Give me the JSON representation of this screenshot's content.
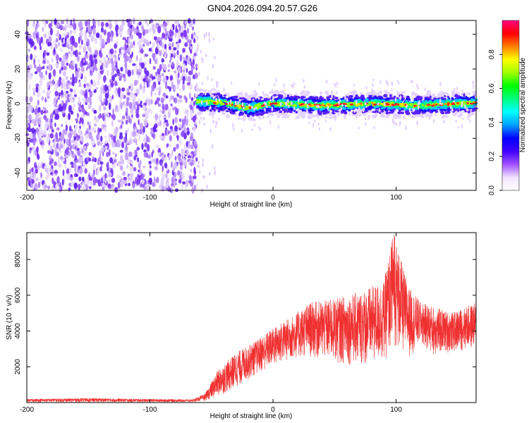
{
  "title": "GN04.2026.094.20.57.G26",
  "chart_data": [
    {
      "type": "heatmap",
      "xlabel": "Height of straight line (km)",
      "ylabel": "Frequency (Hz)",
      "xlim": [
        -200,
        165
      ],
      "ylim": [
        -50,
        48
      ],
      "xticks": [
        "-200",
        "-100",
        "0",
        "100"
      ],
      "xtick_values": [
        -200,
        -100,
        0,
        100
      ],
      "yticks": [
        "-40",
        "-20",
        "0",
        "20",
        "40"
      ],
      "ytick_values": [
        -40,
        -20,
        0,
        20,
        40
      ],
      "colorbar": {
        "label": "Normalized spectral amplitude",
        "range": [
          0,
          1
        ],
        "ticks": [
          "0.0",
          "0.2",
          "0.4",
          "0.6",
          "0.8"
        ],
        "tick_values": [
          0.0,
          0.2,
          0.4,
          0.6,
          0.8
        ],
        "colors": [
          "#ffffff",
          "#f0e0ff",
          "#a050ff",
          "#4000ff",
          "#0000ff",
          "#00a0ff",
          "#00ffff",
          "#00ff80",
          "#00ff00",
          "#a0ff00",
          "#ffff00",
          "#ff8000",
          "#ff0000",
          "#ff0080"
        ]
      },
      "noise_region_x": [
        -200,
        -62
      ],
      "signal_start_x": -62,
      "signal_center_freq": 0,
      "signal_track": [
        {
          "x": -62,
          "f": 1.5
        },
        {
          "x": -40,
          "f": 0.5
        },
        {
          "x": -20,
          "f": -2.5
        },
        {
          "x": 0,
          "f": 0
        },
        {
          "x": 40,
          "f": -1
        },
        {
          "x": 80,
          "f": 0
        },
        {
          "x": 120,
          "f": -1
        },
        {
          "x": 165,
          "f": 0.5
        }
      ]
    },
    {
      "type": "line",
      "xlabel": "Height of straight line (km)",
      "ylabel": "SNR (10 * v/v)",
      "xlim": [
        -200,
        165
      ],
      "ylim": [
        0,
        9500
      ],
      "xticks": [
        "-200",
        "-100",
        "0",
        "100"
      ],
      "xtick_values": [
        -200,
        -100,
        0,
        100
      ],
      "yticks": [
        "2000",
        "4000",
        "6000",
        "8000"
      ],
      "ytick_values": [
        2000,
        4000,
        6000,
        8000
      ],
      "color": "#ff0000",
      "series_envelope": [
        {
          "x": -200,
          "low": 30,
          "high": 200
        },
        {
          "x": -150,
          "low": 20,
          "high": 250
        },
        {
          "x": -100,
          "low": 20,
          "high": 200
        },
        {
          "x": -65,
          "low": 30,
          "high": 180
        },
        {
          "x": -55,
          "low": 100,
          "high": 500
        },
        {
          "x": -45,
          "low": 300,
          "high": 1800
        },
        {
          "x": -30,
          "low": 800,
          "high": 2800
        },
        {
          "x": -15,
          "low": 1500,
          "high": 3400
        },
        {
          "x": 0,
          "low": 2000,
          "high": 4200
        },
        {
          "x": 15,
          "low": 2400,
          "high": 4800
        },
        {
          "x": 30,
          "low": 2500,
          "high": 5600
        },
        {
          "x": 50,
          "low": 2200,
          "high": 5800
        },
        {
          "x": 70,
          "low": 2000,
          "high": 6200
        },
        {
          "x": 90,
          "low": 2200,
          "high": 6800
        },
        {
          "x": 98,
          "low": 3000,
          "high": 9500
        },
        {
          "x": 110,
          "low": 2500,
          "high": 6500
        },
        {
          "x": 120,
          "low": 3200,
          "high": 5600
        },
        {
          "x": 130,
          "low": 2600,
          "high": 5400
        },
        {
          "x": 145,
          "low": 2800,
          "high": 5000
        },
        {
          "x": 165,
          "low": 3000,
          "high": 5600
        }
      ]
    }
  ]
}
